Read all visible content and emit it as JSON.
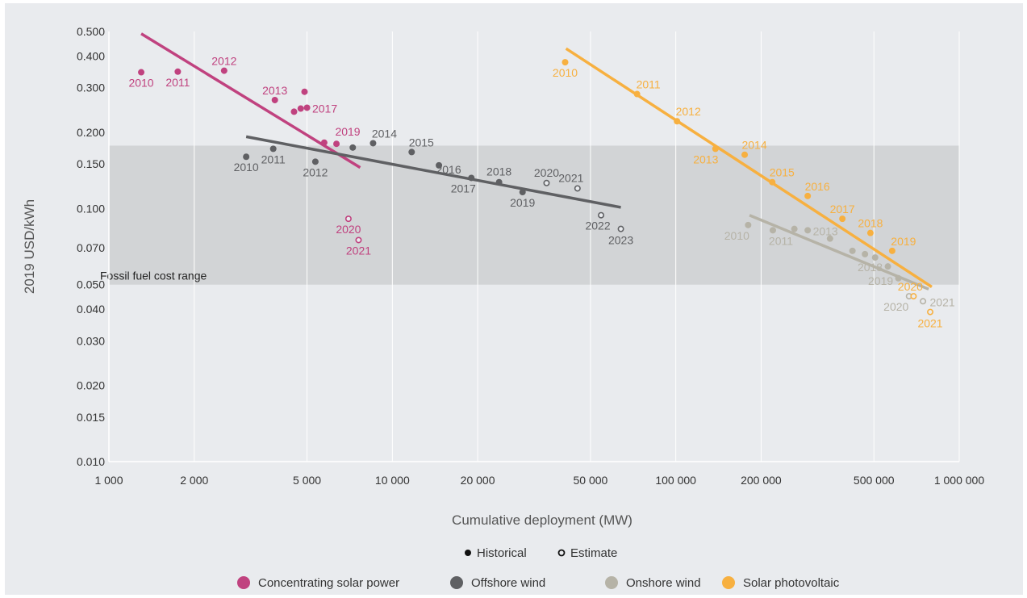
{
  "chart_data": {
    "type": "scatter",
    "title": "",
    "xlabel": "Cumulative deployment (MW)",
    "ylabel": "2019 USD/kWh",
    "xscale": "log",
    "yscale": "log",
    "xlim": [
      1000,
      1000000
    ],
    "ylim": [
      0.01,
      0.5
    ],
    "x_ticks": [
      1000,
      2000,
      5000,
      10000,
      20000,
      50000,
      100000,
      200000,
      500000,
      1000000
    ],
    "x_tick_labels": [
      "1 000",
      "2 000",
      "5 000",
      "10 000",
      "20 000",
      "50 000",
      "100 000",
      "200 000",
      "500 000",
      "1 000 000"
    ],
    "y_ticks": [
      0.01,
      0.015,
      0.02,
      0.03,
      0.04,
      0.05,
      0.07,
      0.1,
      0.15,
      0.2,
      0.3,
      0.4,
      0.5
    ],
    "y_tick_labels": [
      "0.010",
      "0.015",
      "0.020",
      "0.030",
      "0.040",
      "0.050",
      "0.070",
      "0.100",
      "0.150",
      "0.200",
      "0.300",
      "0.400",
      "0.500"
    ],
    "grid": "vertical",
    "band": {
      "label": "Fossil fuel cost range",
      "y_min": 0.05,
      "y_max": 0.177,
      "color": "#d2d4d6"
    },
    "marker_legend": [
      {
        "label": "Historical",
        "style": "filled"
      },
      {
        "label": "Estimate",
        "style": "open"
      }
    ],
    "legend_placement": "bottom",
    "series": [
      {
        "name": "Concentrating solar power",
        "color": "#c0427f",
        "trend": {
          "x": [
            1300,
            7700
          ],
          "y": [
            0.49,
            0.145
          ]
        },
        "points": [
          {
            "x": 1300,
            "y": 0.345,
            "label": "2010",
            "estimate": false
          },
          {
            "x": 1750,
            "y": 0.347,
            "label": "2011",
            "estimate": false
          },
          {
            "x": 2550,
            "y": 0.35,
            "label": "2012",
            "estimate": false
          },
          {
            "x": 3850,
            "y": 0.268,
            "label": "2013",
            "estimate": false
          },
          {
            "x": 4500,
            "y": 0.241,
            "label": "",
            "estimate": false
          },
          {
            "x": 4750,
            "y": 0.248,
            "label": "",
            "estimate": false
          },
          {
            "x": 4900,
            "y": 0.289,
            "label": "",
            "estimate": false
          },
          {
            "x": 5000,
            "y": 0.25,
            "label": "2017",
            "estimate": false
          },
          {
            "x": 5750,
            "y": 0.182,
            "label": "",
            "estimate": false
          },
          {
            "x": 6350,
            "y": 0.18,
            "label": "2019",
            "estimate": false
          },
          {
            "x": 7000,
            "y": 0.091,
            "label": "2020",
            "estimate": true
          },
          {
            "x": 7600,
            "y": 0.075,
            "label": "2021",
            "estimate": true
          }
        ]
      },
      {
        "name": "Offshore wind",
        "color": "#5f6063",
        "trend": {
          "x": [
            3050,
            64000
          ],
          "y": [
            0.192,
            0.101
          ]
        },
        "points": [
          {
            "x": 3050,
            "y": 0.16,
            "label": "2010",
            "estimate": false
          },
          {
            "x": 3800,
            "y": 0.172,
            "label": "2011",
            "estimate": false
          },
          {
            "x": 5350,
            "y": 0.153,
            "label": "2012",
            "estimate": false
          },
          {
            "x": 7250,
            "y": 0.174,
            "label": "",
            "estimate": false
          },
          {
            "x": 8550,
            "y": 0.181,
            "label": "2014",
            "estimate": false
          },
          {
            "x": 11700,
            "y": 0.167,
            "label": "2015",
            "estimate": false
          },
          {
            "x": 14600,
            "y": 0.148,
            "label": "2016",
            "estimate": false
          },
          {
            "x": 19000,
            "y": 0.132,
            "label": "2017",
            "estimate": false
          },
          {
            "x": 23800,
            "y": 0.127,
            "label": "2018",
            "estimate": false
          },
          {
            "x": 28800,
            "y": 0.116,
            "label": "2019",
            "estimate": false
          },
          {
            "x": 35000,
            "y": 0.126,
            "label": "2020",
            "estimate": true
          },
          {
            "x": 45000,
            "y": 0.12,
            "label": "2021",
            "estimate": true
          },
          {
            "x": 54500,
            "y": 0.094,
            "label": "2022",
            "estimate": true
          },
          {
            "x": 64000,
            "y": 0.083,
            "label": "2023",
            "estimate": true
          }
        ]
      },
      {
        "name": "Onshore wind",
        "color": "#b6b3a7",
        "trend": {
          "x": [
            182000,
            780000
          ],
          "y": [
            0.094,
            0.048
          ]
        },
        "points": [
          {
            "x": 180000,
            "y": 0.086,
            "label": "2010",
            "estimate": false
          },
          {
            "x": 220000,
            "y": 0.082,
            "label": "2011",
            "estimate": false
          },
          {
            "x": 262000,
            "y": 0.083,
            "label": "",
            "estimate": false
          },
          {
            "x": 292000,
            "y": 0.082,
            "label": "2013",
            "estimate": false
          },
          {
            "x": 350000,
            "y": 0.076,
            "label": "",
            "estimate": false
          },
          {
            "x": 420000,
            "y": 0.068,
            "label": "",
            "estimate": false
          },
          {
            "x": 465000,
            "y": 0.066,
            "label": "",
            "estimate": false
          },
          {
            "x": 505000,
            "y": 0.064,
            "label": "",
            "estimate": false
          },
          {
            "x": 560000,
            "y": 0.059,
            "label": "2018",
            "estimate": false
          },
          {
            "x": 610000,
            "y": 0.053,
            "label": "2019",
            "estimate": false
          },
          {
            "x": 665000,
            "y": 0.045,
            "label": "2020",
            "estimate": true
          },
          {
            "x": 745000,
            "y": 0.043,
            "label": "2021",
            "estimate": true
          }
        ]
      },
      {
        "name": "Solar photovoltaic",
        "color": "#f7b040",
        "trend": {
          "x": [
            41000,
            800000
          ],
          "y": [
            0.428,
            0.049
          ]
        },
        "points": [
          {
            "x": 40700,
            "y": 0.378,
            "label": "2010",
            "estimate": false
          },
          {
            "x": 73000,
            "y": 0.283,
            "label": "2011",
            "estimate": false
          },
          {
            "x": 101000,
            "y": 0.221,
            "label": "2012",
            "estimate": false
          },
          {
            "x": 138000,
            "y": 0.172,
            "label": "2013",
            "estimate": false
          },
          {
            "x": 175000,
            "y": 0.163,
            "label": "2014",
            "estimate": false
          },
          {
            "x": 219000,
            "y": 0.127,
            "label": "2015",
            "estimate": false
          },
          {
            "x": 292000,
            "y": 0.112,
            "label": "2016",
            "estimate": false
          },
          {
            "x": 387000,
            "y": 0.091,
            "label": "2017",
            "estimate": false
          },
          {
            "x": 486000,
            "y": 0.08,
            "label": "2018",
            "estimate": false
          },
          {
            "x": 580000,
            "y": 0.068,
            "label": "2019",
            "estimate": false
          },
          {
            "x": 690000,
            "y": 0.045,
            "label": "2020",
            "estimate": true
          },
          {
            "x": 790000,
            "y": 0.039,
            "label": "2021",
            "estimate": true
          }
        ]
      }
    ]
  }
}
